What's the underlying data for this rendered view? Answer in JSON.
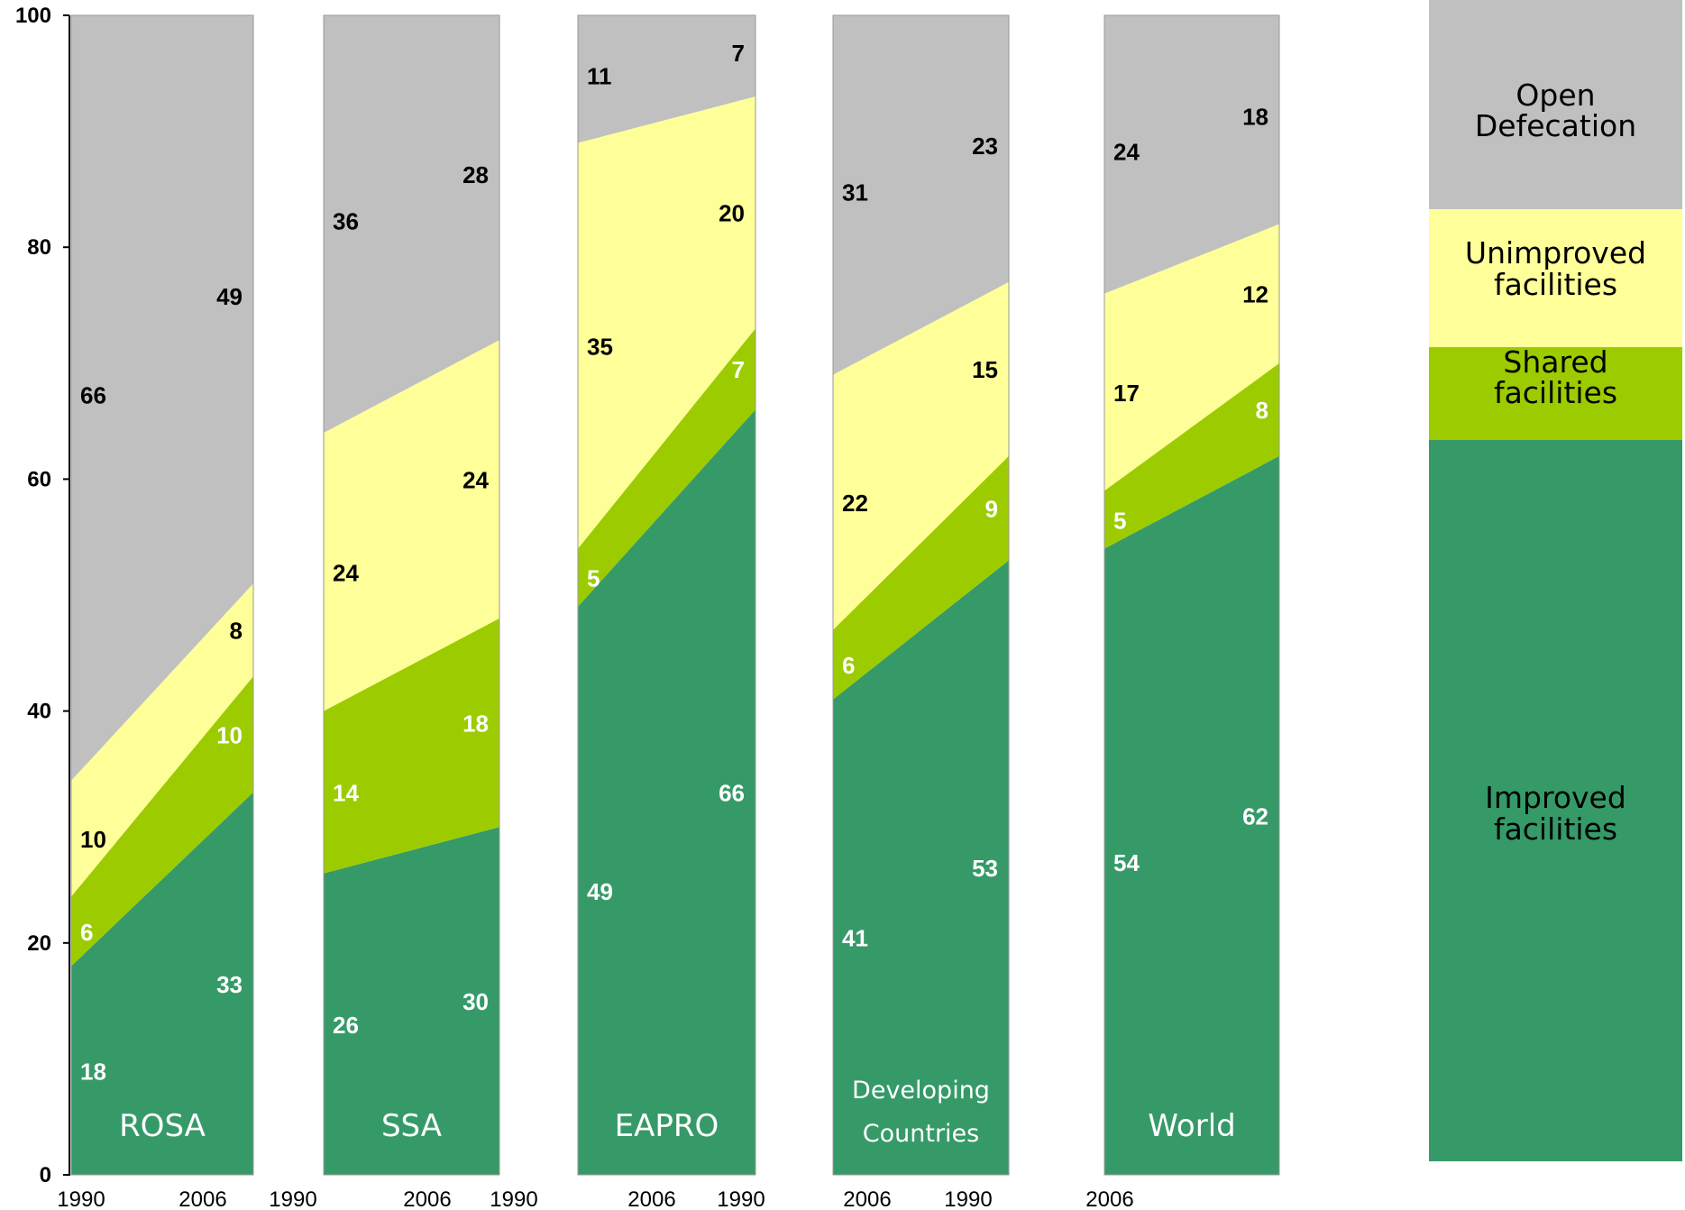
{
  "chart_data": {
    "type": "area",
    "y_range": [
      0,
      100
    ],
    "y_ticks": [
      "0",
      "20",
      "40",
      "60",
      "80",
      "100"
    ],
    "x_tick_labels": [
      "1990",
      "2006",
      "1990",
      "2006",
      "1990",
      "2006",
      "1990",
      "2006",
      "1990",
      "2006"
    ],
    "series_order": [
      "improved",
      "shared",
      "unimproved",
      "open"
    ],
    "colors": {
      "improved": "#359a68",
      "shared": "#9ccc00",
      "unimproved": "#ffff99",
      "open": "#c0c0c0"
    },
    "panels": [
      {
        "region": [
          "ROSA"
        ],
        "years": [
          "1990",
          "2006"
        ],
        "improved": [
          18,
          33
        ],
        "shared": [
          6,
          10
        ],
        "unimproved": [
          10,
          8
        ],
        "open": [
          66,
          49
        ]
      },
      {
        "region": [
          "SSA"
        ],
        "years": [
          "1990",
          "2006"
        ],
        "improved": [
          26,
          30
        ],
        "shared": [
          14,
          18
        ],
        "unimproved": [
          24,
          24
        ],
        "open": [
          36,
          28
        ]
      },
      {
        "region": [
          "EAPRO"
        ],
        "years": [
          "1990",
          "2006"
        ],
        "improved": [
          49,
          66
        ],
        "shared": [
          5,
          7
        ],
        "unimproved": [
          35,
          20
        ],
        "open": [
          11,
          7
        ]
      },
      {
        "region": [
          "Developing",
          "Countries"
        ],
        "years": [
          "1990",
          "2006"
        ],
        "improved": [
          41,
          53
        ],
        "shared": [
          6,
          9
        ],
        "unimproved": [
          22,
          15
        ],
        "open": [
          31,
          23
        ]
      },
      {
        "region": [
          "World"
        ],
        "years": [
          "1990",
          "2006"
        ],
        "improved": [
          54,
          62
        ],
        "shared": [
          5,
          8
        ],
        "unimproved": [
          17,
          12
        ],
        "open": [
          24,
          18
        ]
      }
    ],
    "legend": [
      {
        "key": "open",
        "lines": [
          "Open",
          "Defecation"
        ]
      },
      {
        "key": "unimproved",
        "lines": [
          "Unimproved",
          "facilities"
        ]
      },
      {
        "key": "shared",
        "lines": [
          "Shared",
          "facilities"
        ]
      },
      {
        "key": "improved",
        "lines": [
          "Improved",
          "facilities"
        ]
      }
    ]
  }
}
